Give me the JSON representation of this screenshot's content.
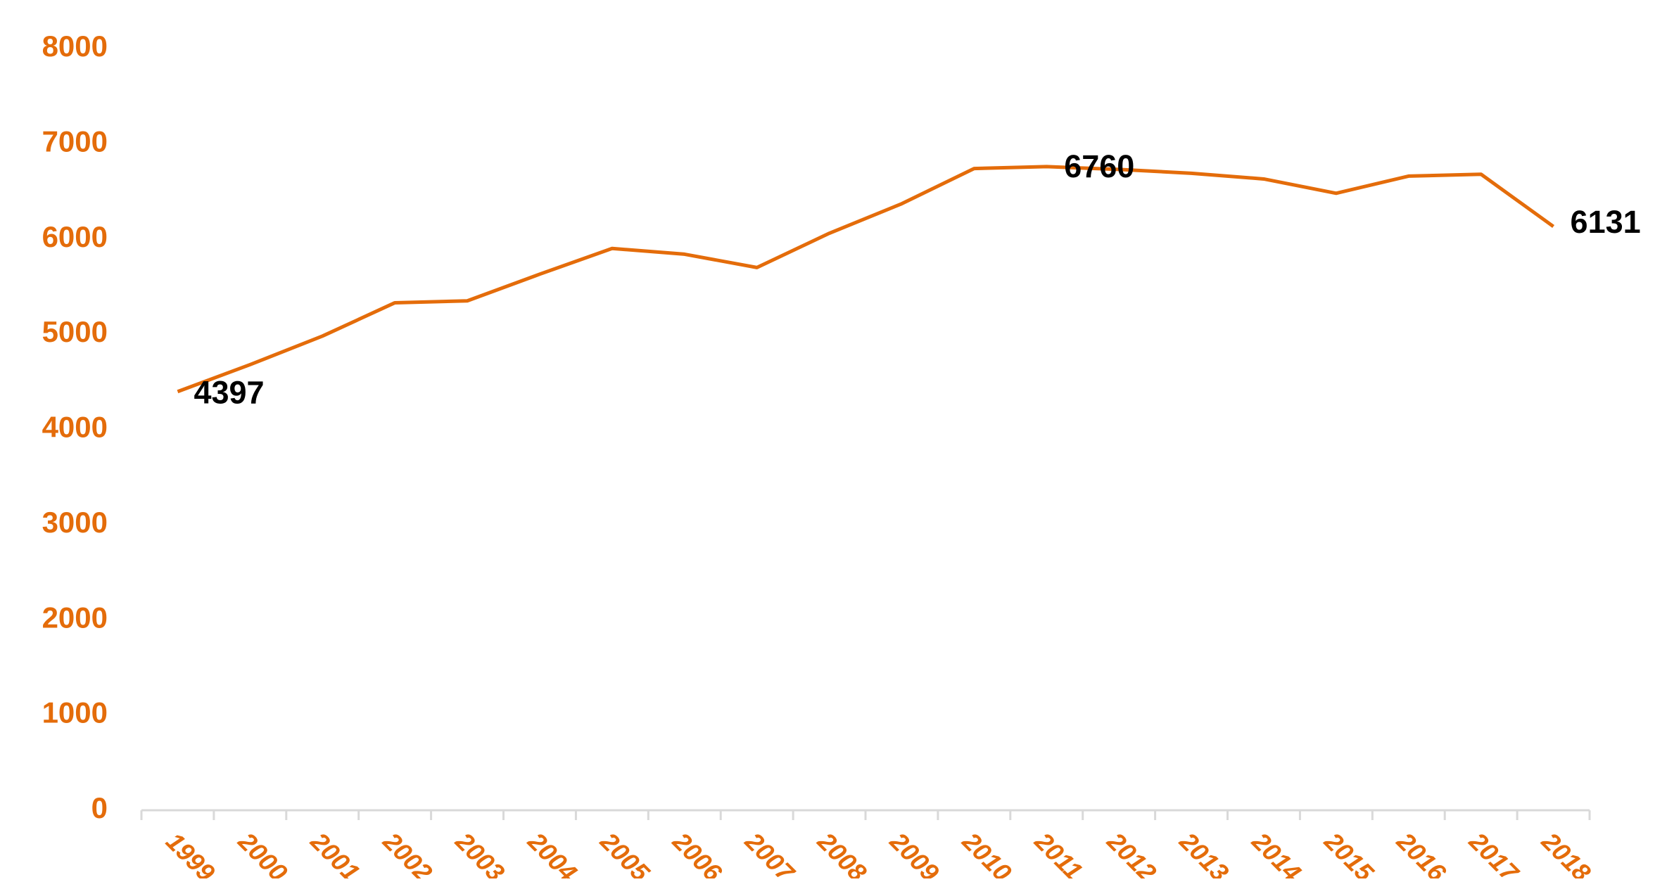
{
  "chart_data": {
    "type": "line",
    "categories": [
      "1999",
      "2000",
      "2001",
      "2002",
      "2003",
      "2004",
      "2005",
      "2006",
      "2007",
      "2008",
      "2009",
      "2010",
      "2011",
      "2012",
      "2013",
      "2014",
      "2015",
      "2016",
      "2017",
      "2018"
    ],
    "series": [
      {
        "color": "#E46C0A",
        "values": [
          4397,
          4680,
          4980,
          5330,
          5350,
          5630,
          5900,
          5840,
          5700,
          6060,
          6370,
          6740,
          6760,
          6730,
          6690,
          6630,
          6480,
          6660,
          6680,
          6131
        ],
        "value_labels": [
          "4397",
          null,
          null,
          null,
          null,
          null,
          null,
          null,
          null,
          null,
          null,
          null,
          "6760",
          null,
          null,
          null,
          null,
          null,
          null,
          "6131"
        ]
      }
    ],
    "ylim": [
      0,
      8000
    ],
    "yticks": [
      0,
      1000,
      2000,
      3000,
      4000,
      5000,
      6000,
      7000,
      8000
    ],
    "grid": false
  }
}
